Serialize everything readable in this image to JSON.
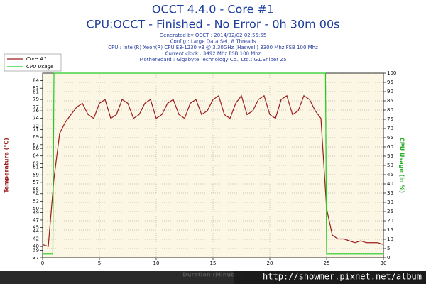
{
  "chart_data": {
    "type": "line",
    "title": "OCCT 4.4.0 - Core #1",
    "subtitle": "CPU:OCCT - Finished - No Error - 0h 30m 00s",
    "info": [
      "Generated by OCCT : 2014/02/02 02:55:55",
      "Config : Large Data Set, 8 Threads",
      "CPU : Intel(R) Xeon(R) CPU E3-1230 v3 @ 3.30GHz (Haswell) 3300 Mhz FSB 100 Mhz",
      "Current clock : 3492 Mhz FSB 100 Mhz",
      "MotherBoard : Gigabyte Technology Co., Ltd.: G1.Sniper Z5"
    ],
    "x_label": "Duration (Minutes)",
    "y_label": "Temperature (°C)",
    "y2_label": "CPU Usage (in %)",
    "watermark": "http://showmer.pixnet.net/album",
    "xlim": [
      0,
      30
    ],
    "xticks": [
      0,
      5,
      10,
      15,
      20,
      25,
      30
    ],
    "ylim": [
      37,
      86
    ],
    "yticks": [
      37,
      39,
      40,
      42,
      44,
      45,
      47,
      49,
      50,
      52,
      54,
      55,
      57,
      59,
      61,
      62,
      64,
      66,
      67,
      69,
      71,
      72,
      74,
      76,
      77,
      79,
      81,
      82,
      84
    ],
    "y2lim": [
      0,
      100
    ],
    "y2ticks": [
      0,
      5,
      10,
      15,
      20,
      25,
      30,
      35,
      40,
      45,
      50,
      55,
      60,
      65,
      70,
      75,
      80,
      85,
      90,
      95,
      100
    ],
    "grid": true,
    "legend": "top-left",
    "series": [
      {
        "name": "Core #1",
        "color": "#9b1c1c",
        "x": [
          0,
          0.5,
          1,
          1.5,
          2,
          2.5,
          3,
          3.5,
          4,
          4.5,
          5,
          5.5,
          6,
          6.5,
          7,
          7.5,
          8,
          8.5,
          9,
          9.5,
          10,
          10.5,
          11,
          11.5,
          12,
          12.5,
          13,
          13.5,
          14,
          14.5,
          15,
          15.5,
          16,
          16.5,
          17,
          17.5,
          18,
          18.5,
          19,
          19.5,
          20,
          20.5,
          21,
          21.5,
          22,
          22.5,
          23,
          23.5,
          24,
          24.5,
          25,
          25.5,
          26,
          26.5,
          27,
          27.5,
          28,
          28.5,
          29,
          29.5,
          30
        ],
        "values": [
          40.5,
          40,
          58,
          70,
          73,
          75,
          77,
          78,
          75,
          74,
          78,
          79,
          74,
          75,
          79,
          78,
          74,
          75,
          78,
          79,
          74,
          75,
          78,
          79,
          75,
          74,
          78,
          79,
          75,
          76,
          79,
          80,
          75,
          74,
          78,
          80,
          75,
          76,
          79,
          80,
          75,
          74,
          79,
          80,
          75,
          76,
          80,
          79,
          76,
          74,
          50,
          43,
          42,
          42,
          41.5,
          41,
          41.5,
          41,
          41,
          41,
          40.5
        ]
      },
      {
        "name": "CPU Usage",
        "color": "#22cc22",
        "axis": "y2",
        "x": [
          0,
          0.9,
          1,
          24.9,
          25,
          30
        ],
        "values": [
          2,
          2,
          100,
          100,
          2,
          2
        ]
      }
    ]
  }
}
